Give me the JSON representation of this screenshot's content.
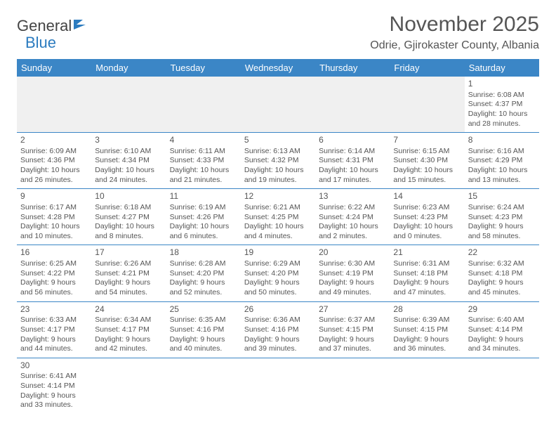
{
  "logo": {
    "text1": "General",
    "text2": "Blue"
  },
  "title": "November 2025",
  "location": "Odrie, Gjirokaster County, Albania",
  "colors": {
    "header_bg": "#3b86c6",
    "header_fg": "#ffffff",
    "border": "#3b86c6",
    "text": "#555555",
    "empty_bg": "#f0f0f0",
    "page_bg": "#ffffff"
  },
  "weekdays": [
    "Sunday",
    "Monday",
    "Tuesday",
    "Wednesday",
    "Thursday",
    "Friday",
    "Saturday"
  ],
  "weeks": [
    [
      null,
      null,
      null,
      null,
      null,
      null,
      {
        "d": "1",
        "sr": "Sunrise: 6:08 AM",
        "ss": "Sunset: 4:37 PM",
        "dl": "Daylight: 10 hours and 28 minutes."
      }
    ],
    [
      {
        "d": "2",
        "sr": "Sunrise: 6:09 AM",
        "ss": "Sunset: 4:36 PM",
        "dl": "Daylight: 10 hours and 26 minutes."
      },
      {
        "d": "3",
        "sr": "Sunrise: 6:10 AM",
        "ss": "Sunset: 4:34 PM",
        "dl": "Daylight: 10 hours and 24 minutes."
      },
      {
        "d": "4",
        "sr": "Sunrise: 6:11 AM",
        "ss": "Sunset: 4:33 PM",
        "dl": "Daylight: 10 hours and 21 minutes."
      },
      {
        "d": "5",
        "sr": "Sunrise: 6:13 AM",
        "ss": "Sunset: 4:32 PM",
        "dl": "Daylight: 10 hours and 19 minutes."
      },
      {
        "d": "6",
        "sr": "Sunrise: 6:14 AM",
        "ss": "Sunset: 4:31 PM",
        "dl": "Daylight: 10 hours and 17 minutes."
      },
      {
        "d": "7",
        "sr": "Sunrise: 6:15 AM",
        "ss": "Sunset: 4:30 PM",
        "dl": "Daylight: 10 hours and 15 minutes."
      },
      {
        "d": "8",
        "sr": "Sunrise: 6:16 AM",
        "ss": "Sunset: 4:29 PM",
        "dl": "Daylight: 10 hours and 13 minutes."
      }
    ],
    [
      {
        "d": "9",
        "sr": "Sunrise: 6:17 AM",
        "ss": "Sunset: 4:28 PM",
        "dl": "Daylight: 10 hours and 10 minutes."
      },
      {
        "d": "10",
        "sr": "Sunrise: 6:18 AM",
        "ss": "Sunset: 4:27 PM",
        "dl": "Daylight: 10 hours and 8 minutes."
      },
      {
        "d": "11",
        "sr": "Sunrise: 6:19 AM",
        "ss": "Sunset: 4:26 PM",
        "dl": "Daylight: 10 hours and 6 minutes."
      },
      {
        "d": "12",
        "sr": "Sunrise: 6:21 AM",
        "ss": "Sunset: 4:25 PM",
        "dl": "Daylight: 10 hours and 4 minutes."
      },
      {
        "d": "13",
        "sr": "Sunrise: 6:22 AM",
        "ss": "Sunset: 4:24 PM",
        "dl": "Daylight: 10 hours and 2 minutes."
      },
      {
        "d": "14",
        "sr": "Sunrise: 6:23 AM",
        "ss": "Sunset: 4:23 PM",
        "dl": "Daylight: 10 hours and 0 minutes."
      },
      {
        "d": "15",
        "sr": "Sunrise: 6:24 AM",
        "ss": "Sunset: 4:23 PM",
        "dl": "Daylight: 9 hours and 58 minutes."
      }
    ],
    [
      {
        "d": "16",
        "sr": "Sunrise: 6:25 AM",
        "ss": "Sunset: 4:22 PM",
        "dl": "Daylight: 9 hours and 56 minutes."
      },
      {
        "d": "17",
        "sr": "Sunrise: 6:26 AM",
        "ss": "Sunset: 4:21 PM",
        "dl": "Daylight: 9 hours and 54 minutes."
      },
      {
        "d": "18",
        "sr": "Sunrise: 6:28 AM",
        "ss": "Sunset: 4:20 PM",
        "dl": "Daylight: 9 hours and 52 minutes."
      },
      {
        "d": "19",
        "sr": "Sunrise: 6:29 AM",
        "ss": "Sunset: 4:20 PM",
        "dl": "Daylight: 9 hours and 50 minutes."
      },
      {
        "d": "20",
        "sr": "Sunrise: 6:30 AM",
        "ss": "Sunset: 4:19 PM",
        "dl": "Daylight: 9 hours and 49 minutes."
      },
      {
        "d": "21",
        "sr": "Sunrise: 6:31 AM",
        "ss": "Sunset: 4:18 PM",
        "dl": "Daylight: 9 hours and 47 minutes."
      },
      {
        "d": "22",
        "sr": "Sunrise: 6:32 AM",
        "ss": "Sunset: 4:18 PM",
        "dl": "Daylight: 9 hours and 45 minutes."
      }
    ],
    [
      {
        "d": "23",
        "sr": "Sunrise: 6:33 AM",
        "ss": "Sunset: 4:17 PM",
        "dl": "Daylight: 9 hours and 44 minutes."
      },
      {
        "d": "24",
        "sr": "Sunrise: 6:34 AM",
        "ss": "Sunset: 4:17 PM",
        "dl": "Daylight: 9 hours and 42 minutes."
      },
      {
        "d": "25",
        "sr": "Sunrise: 6:35 AM",
        "ss": "Sunset: 4:16 PM",
        "dl": "Daylight: 9 hours and 40 minutes."
      },
      {
        "d": "26",
        "sr": "Sunrise: 6:36 AM",
        "ss": "Sunset: 4:16 PM",
        "dl": "Daylight: 9 hours and 39 minutes."
      },
      {
        "d": "27",
        "sr": "Sunrise: 6:37 AM",
        "ss": "Sunset: 4:15 PM",
        "dl": "Daylight: 9 hours and 37 minutes."
      },
      {
        "d": "28",
        "sr": "Sunrise: 6:39 AM",
        "ss": "Sunset: 4:15 PM",
        "dl": "Daylight: 9 hours and 36 minutes."
      },
      {
        "d": "29",
        "sr": "Sunrise: 6:40 AM",
        "ss": "Sunset: 4:14 PM",
        "dl": "Daylight: 9 hours and 34 minutes."
      }
    ],
    [
      {
        "d": "30",
        "sr": "Sunrise: 6:41 AM",
        "ss": "Sunset: 4:14 PM",
        "dl": "Daylight: 9 hours and 33 minutes."
      },
      null,
      null,
      null,
      null,
      null,
      null
    ]
  ]
}
